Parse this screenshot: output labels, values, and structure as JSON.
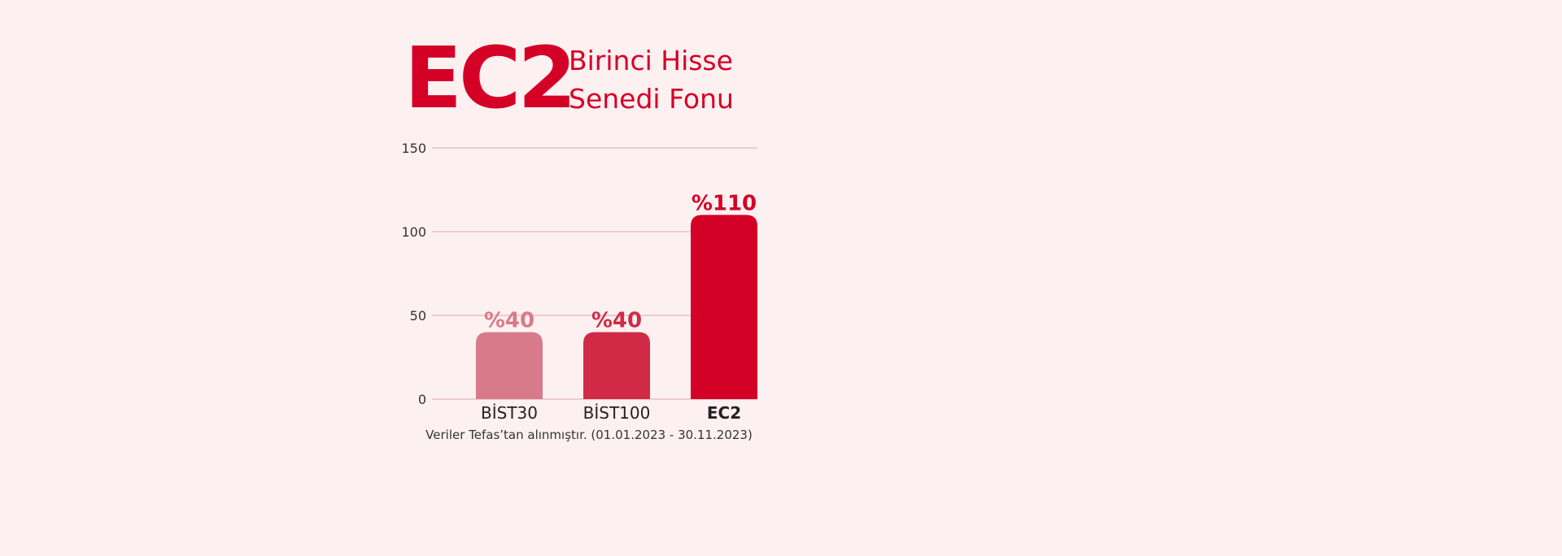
{
  "chart_data": {
    "type": "bar",
    "title": "EC2",
    "subtitle": [
      "Birinci Hisse",
      "Senedi Fonu"
    ],
    "categories": [
      "BİST30",
      "BİST100",
      "EC2"
    ],
    "values": [
      40,
      40,
      110
    ],
    "value_labels": [
      "%40",
      "%40",
      "%110"
    ],
    "colors": [
      "#d77a8a",
      "#d12a47",
      "#d50026"
    ],
    "ylim": [
      0,
      150
    ],
    "yticks": [
      0,
      50,
      100,
      150
    ],
    "grid": true,
    "note": "Veriler Tefas’tan alınmıştır. (01.01.2023 - 30.11.2023)"
  }
}
